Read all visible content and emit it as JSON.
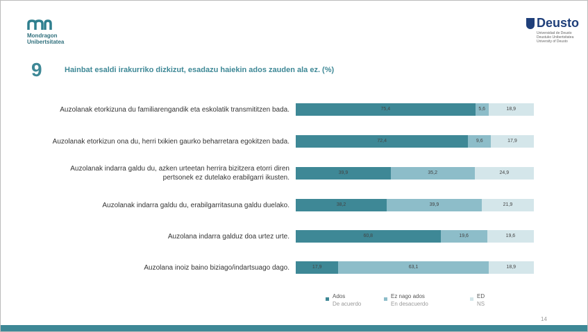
{
  "header": {
    "left_logo": [
      "Mondragon",
      "Unibertsitatea"
    ],
    "right_logo": "Deusto",
    "right_logo_sub": [
      "Universidad de Deusto",
      "Deustuko Unibertsitatea",
      "University of Deusto"
    ]
  },
  "question_number": "9",
  "page_number": "14",
  "chart_data": {
    "type": "stacked-barh",
    "title": "Hainbat esaldi irakurriko dizkizut, esadazu haiekin ados zauden ala ez. (%)",
    "categories": [
      "Auzolanak etorkizuna du familiarengandik eta eskolatik transmititzen bada.",
      "Auzolanak etorkizun ona du, herri txikien gaurko beharretara egokitzen bada.",
      "Auzolanak indarra galdu du, azken urteetan herrira bizitzera etorri diren\npertsonek  ez dutelako erabilgarri ikusten.",
      "Auzolanak indarra galdu du, erabilgarritasuna galdu duelako.",
      "Auzolana indarra galduz doa urtez urte.",
      "Auzolana inoiz baino biziago/indartsuago dago."
    ],
    "xlim": [
      0,
      100
    ],
    "legend": "bottom",
    "series": [
      {
        "name": "Ados",
        "translation": "De acuerdo",
        "color": "#3e8896",
        "values": [
          75.4,
          72.4,
          39.9,
          38.2,
          60.8,
          17.9
        ],
        "value_labels": [
          "75,4",
          "72,4",
          "39,9",
          "38,2",
          "60,8",
          "17,9"
        ]
      },
      {
        "name": "Ez nago ados",
        "translation": "En desacuerdo",
        "color": "#8dbdc9",
        "values": [
          5.6,
          9.6,
          35.2,
          39.9,
          19.6,
          63.1
        ],
        "value_labels": [
          "5,6",
          "9,6",
          "35,2",
          "39,9",
          "19,6",
          "63,1"
        ]
      },
      {
        "name": "ED",
        "translation": "NS",
        "color": "#d4e6ea",
        "values": [
          18.9,
          17.9,
          24.9,
          21.9,
          19.6,
          18.9
        ],
        "value_labels": [
          "18,9",
          "17,9",
          "24,9",
          "21,9",
          "19,6",
          "18,9"
        ]
      }
    ]
  }
}
